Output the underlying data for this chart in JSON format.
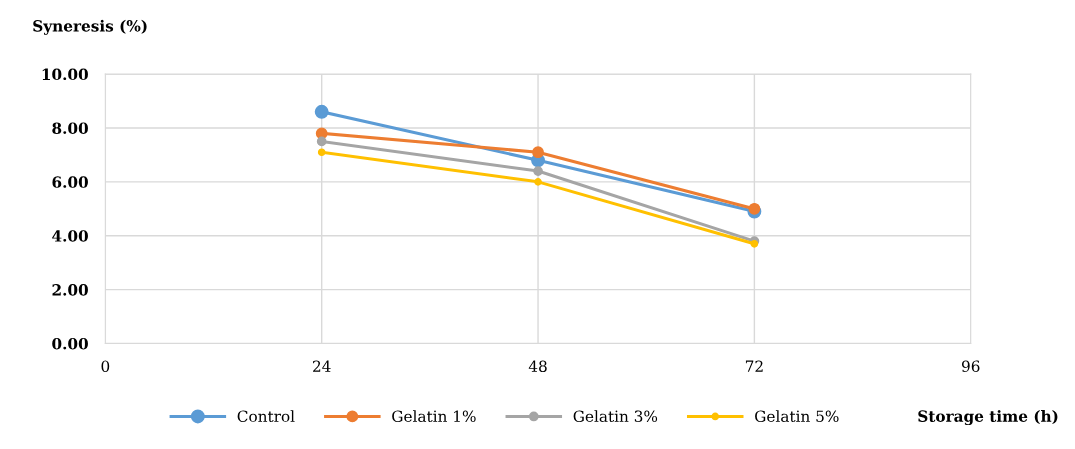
{
  "chart_data": {
    "type": "line",
    "ylabel": "Syneresis (%)",
    "xlabel": "Storage time (h)",
    "x": [
      24,
      48,
      72
    ],
    "xlim": [
      0,
      96
    ],
    "xticks": [
      0,
      24,
      48,
      72,
      96
    ],
    "ylim": [
      0,
      10
    ],
    "yticks": [
      {
        "value": 0,
        "label": "0.00"
      },
      {
        "value": 2,
        "label": "2.00"
      },
      {
        "value": 4,
        "label": "4.00"
      },
      {
        "value": 6,
        "label": "6.00"
      },
      {
        "value": 8,
        "label": "8.00"
      },
      {
        "value": 10,
        "label": "10.00"
      }
    ],
    "grid": true,
    "legend": "bottom",
    "marker": "circle",
    "series": [
      {
        "name": "Control",
        "color": "#5b9bd5",
        "values": [
          8.6,
          6.8,
          4.9
        ]
      },
      {
        "name": "Gelatin 1%",
        "color": "#ed7d31",
        "values": [
          7.8,
          7.1,
          5.0
        ]
      },
      {
        "name": "Gelatin 3%",
        "color": "#a5a5a5",
        "values": [
          7.5,
          6.4,
          3.8
        ]
      },
      {
        "name": "Gelatin 5%",
        "color": "#ffc000",
        "values": [
          7.1,
          6.0,
          3.7
        ]
      }
    ]
  }
}
